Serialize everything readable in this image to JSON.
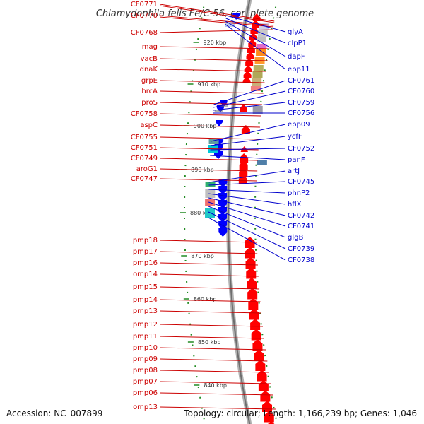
{
  "title": "Chlamydophila felis Fe/C-56, complete genome",
  "footer": {
    "accession": "Accession: NC_007899",
    "topology": "Topology: circular; Length: 1,166,239 bp; Genes: 1,046"
  },
  "colors": {
    "forward_gene": "#ff0000",
    "reverse_gene": "#0000ff",
    "left_label": "#cc0000",
    "right_label": "#0000cc",
    "backbone": "#888888",
    "tick": "#228b22"
  },
  "scale_labels": [
    "920 kbp",
    "910 kbp",
    "900 kbp",
    "890 kbp",
    "880 kbp",
    "870 kbp",
    "860 kbp",
    "850 kbp",
    "840 kbp"
  ],
  "left_labels": [
    "CF0771",
    "CF0770",
    "CF0768",
    "mag",
    "vacB",
    "dnaK",
    "grpE",
    "hrcA",
    "proS",
    "CF0758",
    "aspC",
    "CF0755",
    "CF0751",
    "CF0749",
    "aroG1",
    "CF0747",
    "pmp18",
    "pmp17",
    "pmp16",
    "omp14",
    "pmp15",
    "pmp14",
    "pmp13",
    "pmp12",
    "pmp11",
    "pmp10",
    "pmp09",
    "pmp08",
    "pmp07",
    "pmp06",
    "omp13"
  ],
  "right_labels": [
    "glyA",
    "clpP1",
    "dapF",
    "ebp11",
    "CF0761",
    "CF0760",
    "CF0759",
    "CF0756",
    "ebp09",
    "ycfF",
    "CF0752",
    "panF",
    "artJ",
    "CF0745",
    "phnP2",
    "hflX",
    "CF0742",
    "CF0741",
    "glgB",
    "CF0739",
    "CF0738"
  ]
}
